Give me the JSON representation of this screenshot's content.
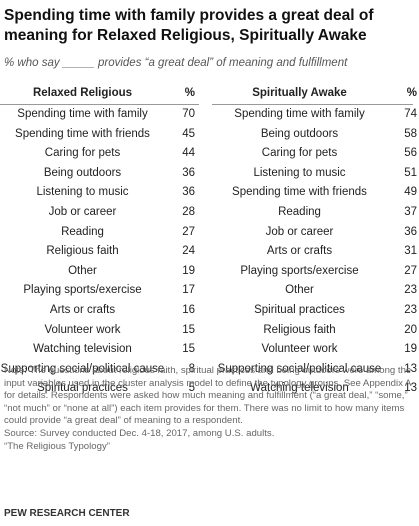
{
  "title": "Spending time with family provides a great deal of meaning for Relaxed Religious, Spiritually Awake",
  "subtitle": "% who say _____ provides “a great deal” of meaning and fulfillment",
  "tables": [
    {
      "header": [
        "Relaxed Religious",
        "%"
      ],
      "rows": [
        [
          "Spending time with family",
          70
        ],
        [
          "Spending time with friends",
          45
        ],
        [
          "Caring for pets",
          44
        ],
        [
          "Being outdoors",
          36
        ],
        [
          "Listening to music",
          36
        ],
        [
          "Job or career",
          28
        ],
        [
          "Reading",
          27
        ],
        [
          "Religious faith",
          24
        ],
        [
          "Other",
          19
        ],
        [
          "Playing sports/exercise",
          17
        ],
        [
          "Arts or crafts",
          16
        ],
        [
          "Volunteer work",
          15
        ],
        [
          "Watching television",
          15
        ],
        [
          "Supporting social/political cause",
          8
        ],
        [
          "Spiritual practices",
          5
        ]
      ]
    },
    {
      "header": [
        "Spiritually Awake",
        "%"
      ],
      "rows": [
        [
          "Spending time with family",
          74
        ],
        [
          "Being outdoors",
          58
        ],
        [
          "Caring for pets",
          56
        ],
        [
          "Listening to music",
          51
        ],
        [
          "Spending time with friends",
          49
        ],
        [
          "Reading",
          37
        ],
        [
          "Job or career",
          36
        ],
        [
          "Arts or crafts",
          31
        ],
        [
          "Playing sports/exercise",
          27
        ],
        [
          "Other",
          23
        ],
        [
          "Spiritual practices",
          23
        ],
        [
          "Religious faith",
          20
        ],
        [
          "Volunteer work",
          19
        ],
        [
          "Supporting social/political cause",
          13
        ],
        [
          "Watching television",
          13
        ]
      ]
    }
  ],
  "note": "Note: The questions about religious faith, spiritual practices and being outdoors were among the input variables used in the cluster analysis model to define the typology groups. See Appendix A for details. Respondents were asked how much meaning and fulfillment (“a great deal,” “some,” “not much” or “none at all”) each item provides for them. There was no limit to how many items could provide “a great deal” of meaning to a respondent.",
  "source": "Source: Survey conducted Dec. 4-18, 2017, among U.S. adults.",
  "report": "“The Religious Typology”",
  "brand": "PEW RESEARCH CENTER"
}
